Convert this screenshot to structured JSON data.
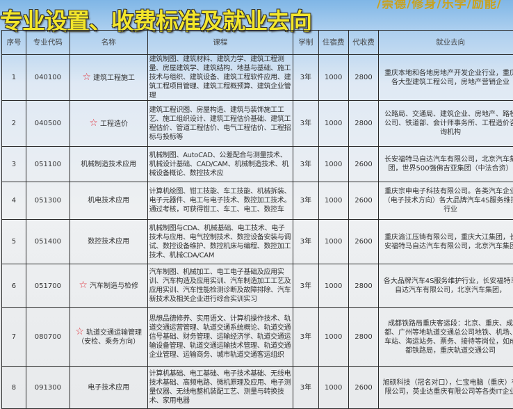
{
  "slogan": "/崇德/修身/乐学/励能/",
  "title": "专业设置、收费标准及就业去向",
  "headers": {
    "no": "序号",
    "code": "专业代码",
    "name": "名称",
    "course": "课程",
    "years": "学制",
    "dorm": "住宿费",
    "fee": "代收费",
    "jobs": "就业去向"
  },
  "rows": [
    {
      "no": "1",
      "code": "040100",
      "star": true,
      "name": "建筑工程施工",
      "course": "建筑制图、建筑材料、建筑力学、建筑工程测量、房屋建筑学、建筑结构、地基与基础、施工技术与组织、建筑设备、建筑工程软件应用、建筑工程项目管理、建筑工程概预算、建筑企业管理",
      "years": "3年",
      "dorm": "1000",
      "fee": "2800",
      "jobs": "重庆本地和各地房地产开发企业行业，重庆各大型建筑工程公司，房地产营销企业"
    },
    {
      "no": "2",
      "code": "040500",
      "star": true,
      "name": "工程造价",
      "course": "建筑工程识图、房屋构造、建筑与装饰施工工艺、施工组织设计、建筑工程估价基础、建筑工程估价、管道工程估价、电气工程估价、工程招标与投标等",
      "years": "3年",
      "dorm": "1000",
      "fee": "2800",
      "jobs": "公路局、交通局、建筑企业、房地产、路桥公司、铁道部、会计师事务所、工程造价咨询机构"
    },
    {
      "no": "3",
      "code": "051100",
      "star": false,
      "name": "机械制造技术应用",
      "course": "机械制图、AutoCAD、公差配合与测量技术、机械设计基础、CAD/CAM、机械制造技术、机械设备概论、数控技术应",
      "years": "3年",
      "dorm": "1000",
      "fee": "2600",
      "jobs": "长安福特马自达汽车有限公司，北京汽车集团，世界500强佛吉亚集团（中法合资）"
    },
    {
      "no": "4",
      "code": "051300",
      "star": false,
      "name": "机电技术应用",
      "course": "计算机绘图、钳工技能、车工技能、机械拆装、电子元器件、电工与电子技术、数控加工技术。通过考核，可获得钳工、车工、电工、数控车",
      "years": "3年",
      "dorm": "1000",
      "fee": "2600",
      "jobs": "重庆宗申电子科技有限公司。各类汽车企业（电子技术方向）各大品牌汽车4S服务维护行业"
    },
    {
      "no": "5",
      "code": "051400",
      "star": false,
      "name": "数控技术应用",
      "course": "机械制图与CDA、机械基础、电工技术、电子技术与应用、电气控制技术、数控设备安装与调试、数控设备维护、数控机床与编程、数控加工技术、机械CDA/CAM",
      "years": "3年",
      "dorm": "1000",
      "fee": "2600",
      "jobs": "重庆渝江压铸有限公司，重庆大江集团，长安福特马自达汽车有限公司，北京汽车集团"
    },
    {
      "no": "6",
      "code": "051700",
      "star": true,
      "name": "汽车制造与检修",
      "course": "汽车制图、机械加工、电工电子基础及应用实训、汽车构造及应用实训、汽车制造加工工艺及应用实训、汽车性能检测诊断及故障排除、汽车新技术及相关企业进行综合实训实习",
      "years": "3年",
      "dorm": "1000",
      "fee": "2800",
      "jobs": "各大品牌汽车4S服务维护行业，长安福特马自达汽车有限公司，北京汽车集团，"
    },
    {
      "no": "7",
      "code": "080700",
      "star": true,
      "name": "轨道交通运输管理（安检、乘务方向）",
      "course": "思想品德修养、实用语文、计算机操作技术、轨道交通运营管理、轨道交通系统概论、轨道交通信号基础、财务管理、运输经济学、轨道交通运输设备管理、轨道交通运输技术管理、轨道交通企业管理、运输商务、城市轨道交通客运组织",
      "years": "3年",
      "dorm": "1000",
      "fee": "2800",
      "jobs": "成都铁路局重庆客运段：北京、重庆、成都、广州等地轨道交通总公司地铁、机场、车站、海运站务、票务、接待等岗位，如成都铁路局，重庆轨道交通公司"
    },
    {
      "no": "8",
      "code": "091300",
      "star": false,
      "name": "电子技术应用",
      "course": "计算机基础、电工基础、电子技术基础、无线电技术基础、高频电路、微机原理及应用、电子测量仪器、无线电整机装配工艺、测量与转换技术、家用电器",
      "years": "3年",
      "dorm": "1000",
      "fee": "2600",
      "jobs": "旭硕科技（冠名对口），仁宝电脑（重庆）有限公司，英业达重庆有限公司等各类IT企业"
    }
  ]
}
